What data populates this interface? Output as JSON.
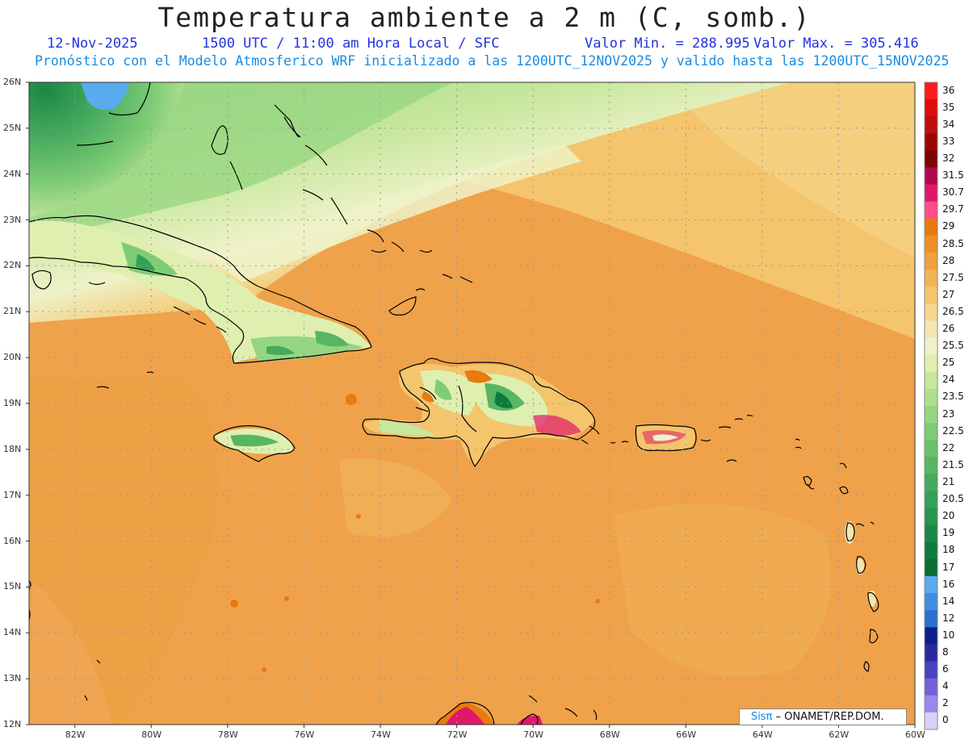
{
  "header": {
    "title": "Temperatura ambiente a 2 m (C, somb.)",
    "date": "12-Nov-2025",
    "time_info": "1500 UTC / 11:00 am Hora Local / SFC",
    "min_label": "Valor Min. = 288.995",
    "max_label": "Valor Max. = 305.416",
    "forecast_info": "Pronóstico con el Modelo Atmosferico WRF inicializado a las 1200UTC_12NOV2025 y valido hasta las  1200UTC_15NOV2025"
  },
  "map": {
    "lon_range": [
      -83.2,
      -60
    ],
    "lat_range": [
      12,
      26
    ],
    "lon_ticks": [
      "82W",
      "80W",
      "78W",
      "76W",
      "74W",
      "72W",
      "70W",
      "68W",
      "66W",
      "64W",
      "62W",
      "60W"
    ],
    "lat_ticks": [
      "26N",
      "25N",
      "24N",
      "23N",
      "22N",
      "21N",
      "20N",
      "19N",
      "18N",
      "17N",
      "16N",
      "15N",
      "14N",
      "13N",
      "12N"
    ]
  },
  "colorbar": {
    "levels": [
      "36",
      "35",
      "34",
      "33",
      "32",
      "31.5",
      "30.7",
      "29.7",
      "29",
      "28.5",
      "28",
      "27.5",
      "27",
      "26.5",
      "26",
      "25.5",
      "25",
      "24",
      "23.5",
      "23",
      "22.5",
      "22",
      "21.5",
      "21",
      "20.5",
      "20",
      "19",
      "18",
      "17",
      "16",
      "14",
      "12",
      "10",
      "8",
      "6",
      "4",
      "2",
      "0"
    ],
    "colors": [
      "#ff1a1a",
      "#e00b0b",
      "#c00d0d",
      "#9a0606",
      "#7a0505",
      "#b00a4a",
      "#e0186a",
      "#ff4d88",
      "#e87a10",
      "#ef8e25",
      "#f0a040",
      "#f2b455",
      "#f4c56c",
      "#f5d68a",
      "#f3e6b0",
      "#eef2c8",
      "#dfefb0",
      "#c6e79c",
      "#addf8c",
      "#96d682",
      "#7fcc76",
      "#6ac16b",
      "#57b663",
      "#45aa5d",
      "#35a058",
      "#279450",
      "#1b8746",
      "#0f7a3c",
      "#0a6d34",
      "#5aaaf0",
      "#3f8de0",
      "#2a6fd0",
      "#0d1f8a",
      "#2a2aa0",
      "#4a40c0",
      "#7460d8",
      "#9a88ec",
      "#d6d2fa"
    ]
  },
  "credit": {
    "brand": "Sisπ",
    "text": "– ONAMET/REP.DOM."
  }
}
